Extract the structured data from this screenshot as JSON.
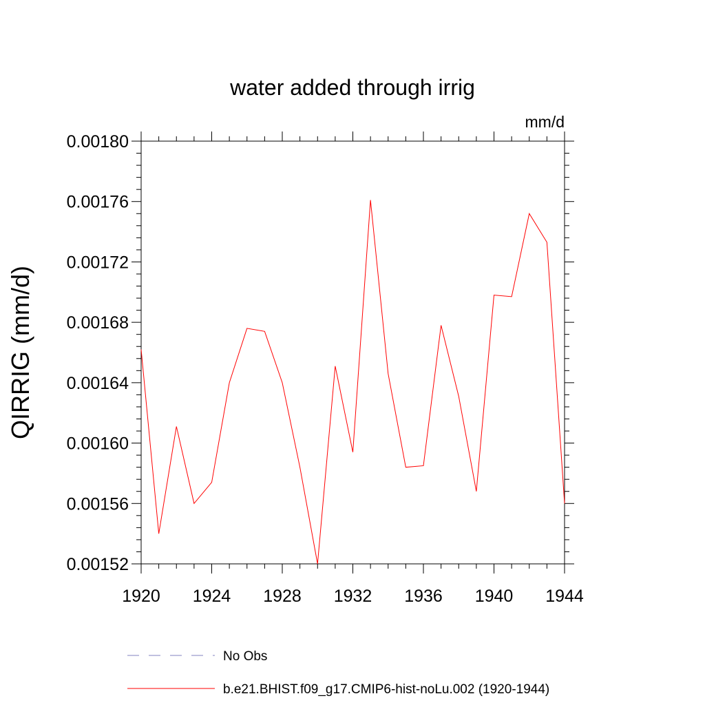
{
  "chart_data": {
    "type": "line",
    "title": "water added through irrig",
    "units": "mm/d",
    "ylabel": "QIRRIG  (mm/d)",
    "xlabel": "",
    "xlim": [
      1920,
      1944
    ],
    "ylim": [
      0.00152,
      0.0018
    ],
    "xticks": [
      "1920",
      "1924",
      "1928",
      "1932",
      "1936",
      "1940",
      "1944"
    ],
    "yticks": [
      "0.00152",
      "0.00156",
      "0.00160",
      "0.00164",
      "0.00168",
      "0.00172",
      "0.00176",
      "0.00180"
    ],
    "grid": false,
    "legend_position": "bottom",
    "series": [
      {
        "name": "No Obs",
        "color": "#8080c0",
        "dash": true,
        "values": []
      },
      {
        "name": "b.e21.BHIST.f09_g17.CMIP6-hist-noLu.002 (1920-1944)",
        "color": "#ff0000",
        "dash": false,
        "x": [
          1920,
          1921,
          1922,
          1923,
          1924,
          1925,
          1926,
          1927,
          1928,
          1929,
          1930,
          1931,
          1932,
          1933,
          1934,
          1935,
          1936,
          1937,
          1938,
          1939,
          1940,
          1941,
          1942,
          1943,
          1944
        ],
        "values": [
          0.001662,
          0.00154,
          0.001611,
          0.00156,
          0.001574,
          0.00164,
          0.001676,
          0.001674,
          0.00164,
          0.001584,
          0.00152,
          0.001651,
          0.001594,
          0.001761,
          0.001646,
          0.001584,
          0.001585,
          0.001678,
          0.001631,
          0.001568,
          0.001698,
          0.001697,
          0.001752,
          0.001733,
          0.00156
        ]
      }
    ]
  }
}
